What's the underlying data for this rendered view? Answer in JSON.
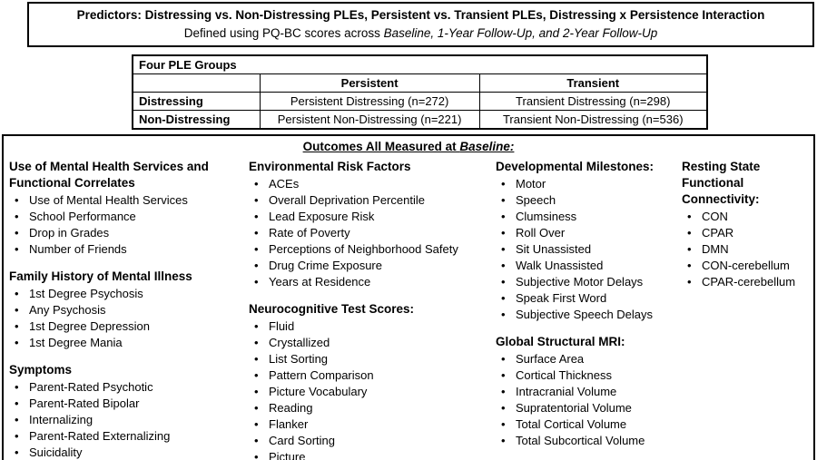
{
  "predictors_box": {
    "title": "Predictors: Distressing vs. Non-Distressing PLEs, Persistent vs. Transient PLEs, Distressing x Persistence Interaction",
    "subtitle_prefix": "Defined using PQ-BC scores across ",
    "subtitle_italic": "Baseline, 1-Year Follow-Up, and 2-Year Follow-Up"
  },
  "ple_table": {
    "title": "Four PLE Groups",
    "col_persistent": "Persistent",
    "col_transient": "Transient",
    "row_distressing": {
      "label": "Distressing",
      "persistent": "Persistent Distressing (n=272)",
      "transient": "Transient Distressing (n=298)"
    },
    "row_non_distressing": {
      "label": "Non-Distressing",
      "persistent": "Persistent Non-Distressing (n=221)",
      "transient": "Transient Non-Distressing (n=536)"
    }
  },
  "outcomes": {
    "title_prefix": "Outcomes All Measured at ",
    "title_italic": "Baseline:",
    "col1": {
      "sec1": {
        "heading": "Use of Mental Health Services and Functional Correlates",
        "items": [
          "Use of Mental Health Services",
          "School Performance",
          "Drop in Grades",
          "Number of Friends"
        ]
      },
      "sec2": {
        "heading": "Family History of Mental Illness",
        "items": [
          "1st Degree Psychosis",
          "Any Psychosis",
          "1st Degree Depression",
          "1st Degree Mania"
        ]
      },
      "sec3": {
        "heading": "Symptoms",
        "items": [
          "Parent-Rated Psychotic",
          "Parent-Rated Bipolar",
          "Internalizing",
          "Parent-Rated Externalizing",
          "Suicidality"
        ]
      }
    },
    "col2": {
      "sec1": {
        "heading": "Environmental Risk Factors",
        "items": [
          "ACEs",
          "Overall Deprivation Percentile",
          "Lead Exposure Risk",
          "Rate of Poverty",
          "Perceptions of Neighborhood Safety",
          "Drug Crime Exposure",
          "Years at Residence"
        ]
      },
      "sec2": {
        "heading": "Neurocognitive Test Scores:",
        "items": [
          "Fluid",
          "Crystallized",
          "List Sorting",
          "Pattern Comparison",
          "Picture Vocabulary",
          "Reading",
          "Flanker",
          "Card Sorting",
          "Picture"
        ]
      }
    },
    "col3": {
      "sec1": {
        "heading": "Developmental Milestones:",
        "items": [
          "Motor",
          "Speech",
          "Clumsiness",
          "Roll Over",
          "Sit Unassisted",
          "Walk Unassisted",
          "Subjective Motor Delays",
          "Speak First Word",
          "Subjective Speech Delays"
        ]
      },
      "sec2": {
        "heading": "Global Structural MRI:",
        "items": [
          "Surface Area",
          "Cortical Thickness",
          "Intracranial Volume",
          "Supratentorial Volume",
          "Total Cortical Volume",
          "Total Subcortical Volume"
        ]
      }
    },
    "col4": {
      "sec1": {
        "heading": "Resting State Functional Connectivity:",
        "items": [
          "CON",
          "CPAR",
          "DMN",
          "CON-cerebellum",
          "CPAR-cerebellum"
        ]
      }
    }
  }
}
